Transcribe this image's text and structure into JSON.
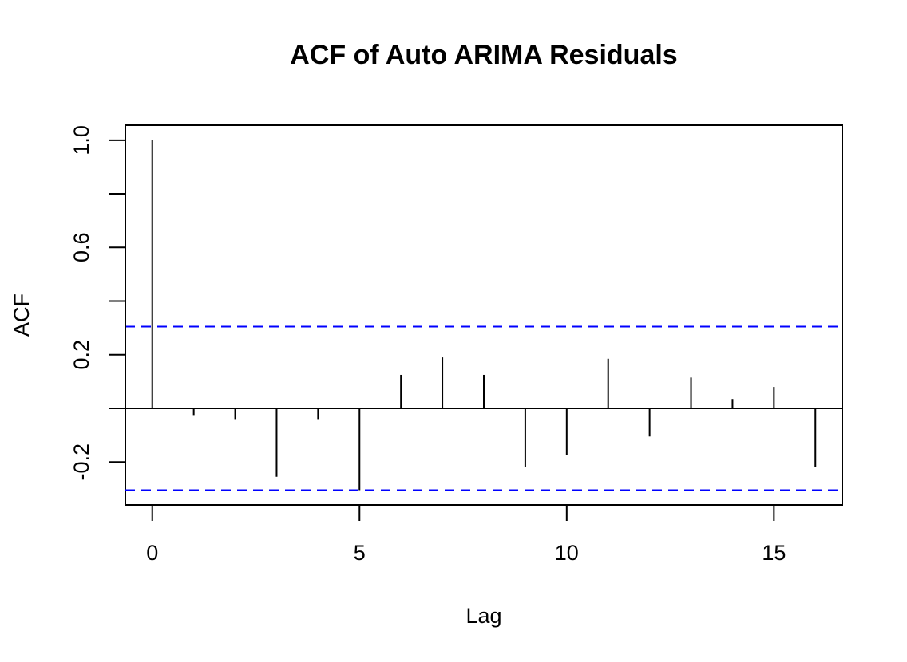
{
  "chart_data": {
    "type": "bar",
    "title": "ACF of Auto ARIMA Residuals",
    "xlabel": "Lag",
    "ylabel": "ACF",
    "x": [
      0,
      1,
      2,
      3,
      4,
      5,
      6,
      7,
      8,
      9,
      10,
      11,
      12,
      13,
      14,
      15,
      16
    ],
    "values": [
      1.0,
      -0.025,
      -0.04,
      -0.255,
      -0.04,
      -0.305,
      0.125,
      0.19,
      0.125,
      -0.22,
      -0.175,
      0.185,
      -0.105,
      0.115,
      0.035,
      0.08,
      -0.22
    ],
    "confidence_bound": 0.305,
    "confidence_color": "#0000ff",
    "xlim": [
      -0.65,
      16.65
    ],
    "ylim": [
      -0.36,
      1.056
    ],
    "x_ticks": [
      0,
      5,
      10,
      15
    ],
    "x_tick_labels": [
      "0",
      "5",
      "10",
      "15"
    ],
    "y_ticks": [
      -0.2,
      0.0,
      0.2,
      0.4,
      0.6,
      0.8,
      1.0
    ],
    "y_tick_labels": [
      "-0.2",
      "",
      "0.2",
      "",
      "0.6",
      "",
      "1.0"
    ],
    "grid": false,
    "legend": "none"
  }
}
